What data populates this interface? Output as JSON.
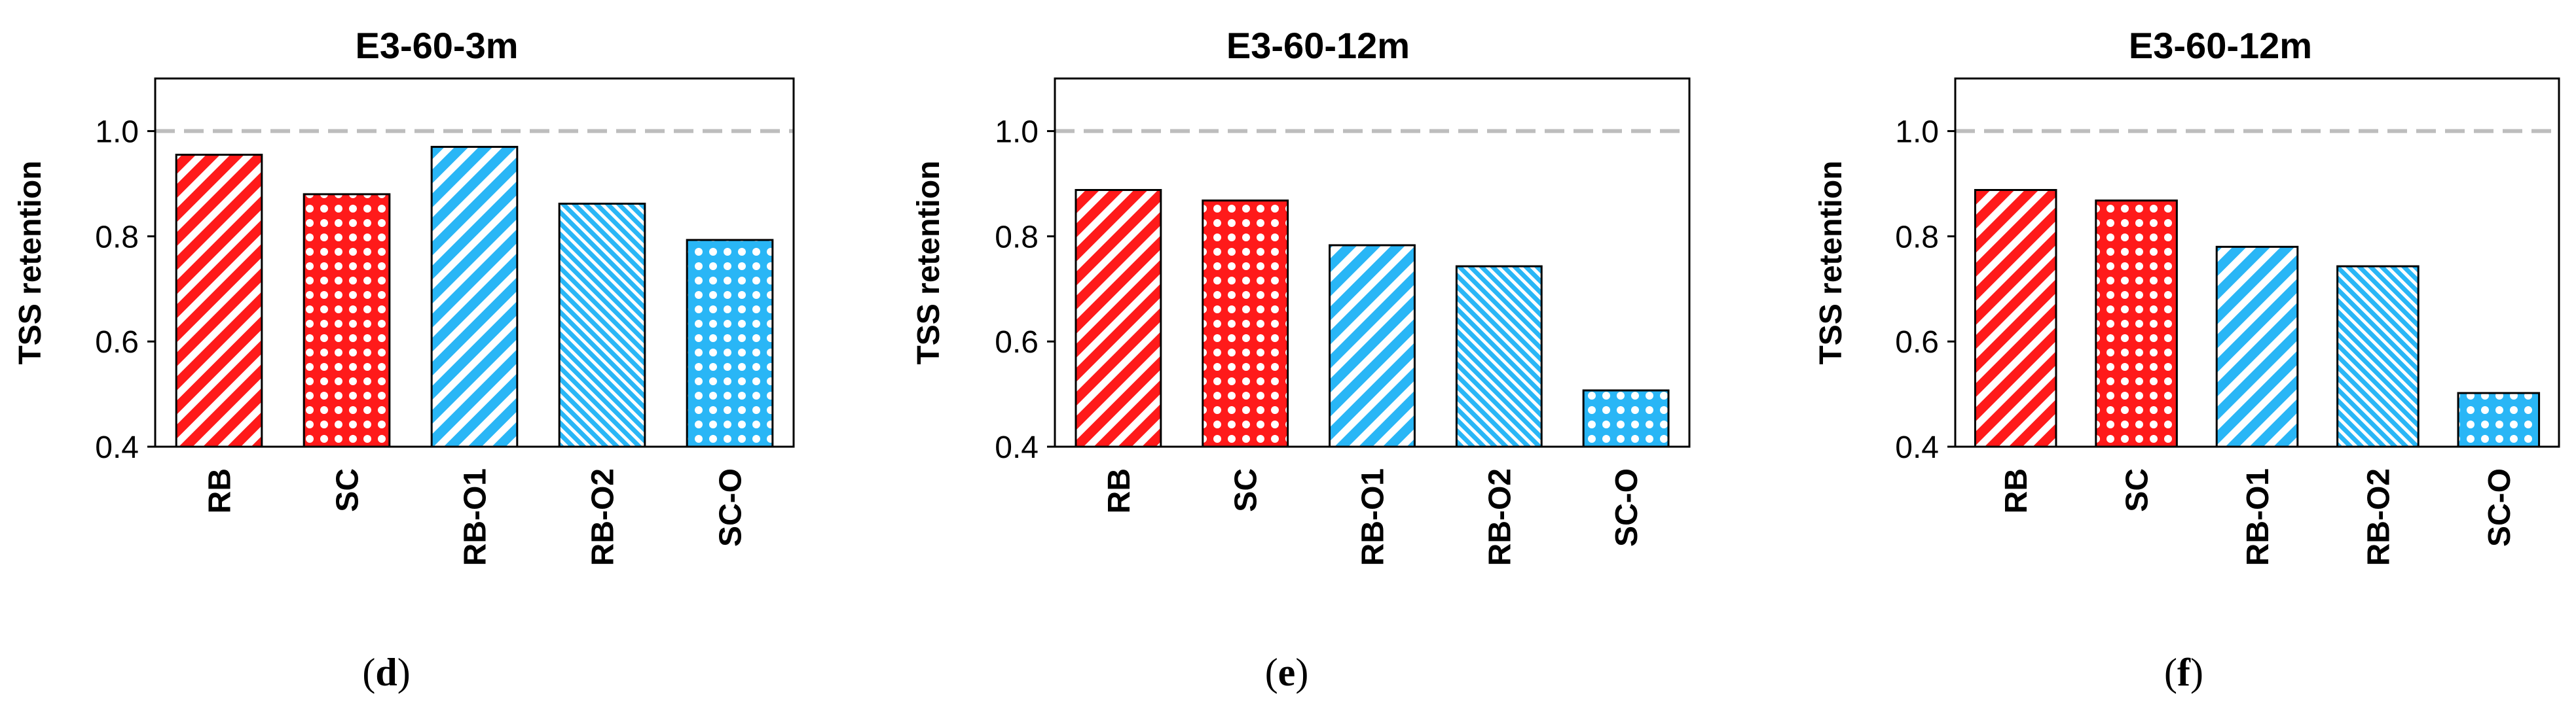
{
  "palette": {
    "red": "#ff1a1a",
    "blue": "#29b6f6",
    "reference_line": "#bdbdbd",
    "bar_border": "#000000"
  },
  "chart_data": [
    {
      "type": "bar",
      "title": "E3-60-3m",
      "panel_label": "d",
      "ylabel": "TSS retention",
      "xlabel": "",
      "ylim": [
        0.4,
        1.1
      ],
      "yticks": [
        "0.4",
        "0.6",
        "0.8",
        "1.0"
      ],
      "reference_line": 1.0,
      "categories": [
        "RB",
        "SC",
        "RB-O1",
        "RB-O2",
        "SC-O"
      ],
      "values": [
        0.955,
        0.88,
        0.97,
        0.862,
        0.793
      ],
      "patterns": [
        "diag-red",
        "dots-red",
        "diag-blue",
        "fine-blue",
        "dots-blue"
      ]
    },
    {
      "type": "bar",
      "title": "E3-60-12m",
      "panel_label": "e",
      "ylabel": "TSS retention",
      "xlabel": "",
      "ylim": [
        0.4,
        1.1
      ],
      "yticks": [
        "0.4",
        "0.6",
        "0.8",
        "1.0"
      ],
      "reference_line": 1.0,
      "categories": [
        "RB",
        "SC",
        "RB-O1",
        "RB-O2",
        "SC-O"
      ],
      "values": [
        0.888,
        0.868,
        0.783,
        0.743,
        0.507
      ],
      "patterns": [
        "diag-red",
        "dots-red",
        "diag-blue",
        "fine-blue",
        "dots-blue"
      ]
    },
    {
      "type": "bar",
      "title": "E3-60-12m",
      "panel_label": "f",
      "ylabel": "TSS retention",
      "xlabel": "",
      "ylim": [
        0.4,
        1.1
      ],
      "yticks": [
        "0.4",
        "0.6",
        "0.8",
        "1.0"
      ],
      "reference_line": 1.0,
      "categories": [
        "RB",
        "SC",
        "RB-O1",
        "RB-O2",
        "SC-O"
      ],
      "values": [
        0.888,
        0.868,
        0.78,
        0.743,
        0.502
      ],
      "patterns": [
        "diag-red",
        "dots-red",
        "diag-blue",
        "fine-blue",
        "dots-blue"
      ]
    }
  ]
}
